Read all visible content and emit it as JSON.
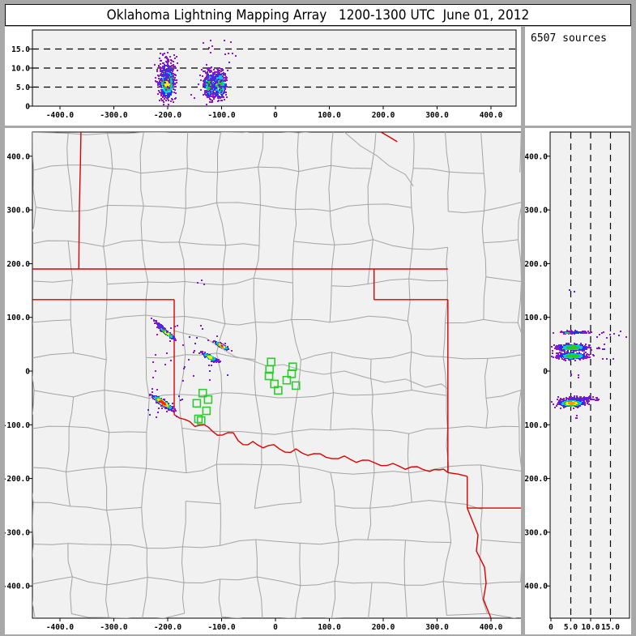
{
  "title": "Oklahoma Lightning Mapping Array   1200-1300 UTC  June 01, 2012",
  "sources_label": "6507 sources",
  "colors": {
    "frame": "#a8a8a8",
    "panel_bg": "#ffffff",
    "plot_bg": "#f1f1f1",
    "county_line": "#a3a3a3",
    "river_line": "#ababab",
    "state_border": "#dd0000",
    "station": "#2ecc2e",
    "dash_line": "#000000",
    "palettes": {
      "hot": [
        [
          0.45,
          "#ff2200"
        ],
        [
          0.72,
          "#ff9900"
        ],
        [
          0.98,
          "#ffee00"
        ],
        [
          1.28,
          "#22cc22"
        ],
        [
          1.62,
          "#00ccdd"
        ],
        [
          2.1,
          "#2233ee"
        ],
        [
          9,
          "#8818cc"
        ]
      ],
      "orange": [
        [
          0.5,
          "#ff9900"
        ],
        [
          0.82,
          "#ffee00"
        ],
        [
          1.15,
          "#22cc22"
        ],
        [
          1.5,
          "#00ccdd"
        ],
        [
          2.0,
          "#2233ee"
        ],
        [
          9,
          "#8818cc"
        ]
      ],
      "yellow": [
        [
          0.55,
          "#ffee00"
        ],
        [
          1.0,
          "#22cc22"
        ],
        [
          1.45,
          "#00ccdd"
        ],
        [
          1.95,
          "#2233ee"
        ],
        [
          9,
          "#8818cc"
        ]
      ],
      "green": [
        [
          0.8,
          "#22cc22"
        ],
        [
          1.3,
          "#00ccdd"
        ],
        [
          1.8,
          "#2233ee"
        ],
        [
          9,
          "#8818cc"
        ]
      ],
      "cyan": [
        [
          0.9,
          "#00ccdd"
        ],
        [
          1.6,
          "#2233ee"
        ],
        [
          9,
          "#8818cc"
        ]
      ],
      "blue": [
        [
          1.0,
          "#2233ee"
        ],
        [
          9,
          "#8818cc"
        ]
      ],
      "purple": [
        [
          1.1,
          "#5522dd"
        ],
        [
          9,
          "#8818cc"
        ]
      ]
    }
  },
  "chart_data": [
    {
      "type": "scatter",
      "panel": "ew_altitude",
      "description": "East-West distance (km) vs altitude (km) cross section",
      "xlim": [
        -451,
        447
      ],
      "ylim": [
        0,
        20
      ],
      "x_tick_values": [
        -400,
        -300,
        -200,
        -100,
        0,
        100,
        200,
        300,
        400
      ],
      "x_tick_labels": [
        "-400.0",
        "-300.0",
        "-200.0",
        "-100.0",
        "0",
        "100.0",
        "200.0",
        "300.0",
        "400.0"
      ],
      "y_tick_values": [
        15,
        10,
        5,
        0
      ],
      "y_tick_labels": [
        "15.0",
        "10.0",
        "5.0",
        "0"
      ],
      "dash_values": [
        5,
        10,
        15
      ],
      "clusters": [
        {
          "cx": -201,
          "cy": 6.2,
          "sx": 6.5,
          "sy": 2.0,
          "angle": 0,
          "n": 620,
          "palette": "yellow"
        },
        {
          "cx": -201,
          "cy": 8.5,
          "sx": 9.0,
          "sy": 2.6,
          "angle": 0,
          "n": 130,
          "palette": "purple"
        },
        {
          "cx": -122,
          "cy": 5.4,
          "sx": 5.0,
          "sy": 1.7,
          "angle": 0,
          "n": 260,
          "palette": "green"
        },
        {
          "cx": -103,
          "cy": 5.7,
          "sx": 6.0,
          "sy": 1.9,
          "angle": 0,
          "n": 280,
          "palette": "green"
        },
        {
          "cx": -112,
          "cy": 6.0,
          "sx": 13.0,
          "sy": 2.5,
          "angle": 0,
          "n": 150,
          "palette": "purple"
        }
      ],
      "strays": [
        {
          "x0": -140,
          "x1": -70,
          "y0": 11,
          "y1": 17.5,
          "n": 12
        },
        {
          "x0": -215,
          "x1": -195,
          "y0": 13,
          "y1": 15.5,
          "n": 3
        }
      ]
    },
    {
      "type": "scatter",
      "panel": "plan_view",
      "description": "Plan view map, E-W km vs N-S km, Oklahoma county and state borders",
      "xlim": [
        -451,
        458
      ],
      "ylim": [
        -460,
        445
      ],
      "x_tick_values": [
        -400,
        -300,
        -200,
        -100,
        0,
        100,
        200,
        300,
        400
      ],
      "x_tick_labels": [
        "-400.0",
        "-300.0",
        "-200.0",
        "-100.0",
        "0",
        "100.0",
        "200.0",
        "300.0",
        "400.0"
      ],
      "y_tick_values": [
        400,
        300,
        200,
        100,
        0,
        -100,
        -200,
        -300,
        -400
      ],
      "y_tick_labels": [
        "400.0",
        "300.0",
        "200.0",
        "100.0",
        "0",
        "-100.0",
        "-200.0",
        "-300.0",
        "-400.0"
      ],
      "clusters": [
        {
          "cx": -202,
          "cy": 71,
          "sx": 9.0,
          "sy": 1.4,
          "angle": -38,
          "n": 230,
          "palette": "yellow"
        },
        {
          "cx": -214,
          "cy": 85,
          "sx": 8.0,
          "sy": 1.2,
          "angle": -40,
          "n": 55,
          "palette": "purple"
        },
        {
          "cx": -100,
          "cy": 47,
          "sx": 7.0,
          "sy": 1.2,
          "angle": -28,
          "n": 160,
          "palette": "orange"
        },
        {
          "cx": -122,
          "cy": 26,
          "sx": 7.0,
          "sy": 1.9,
          "angle": -28,
          "n": 210,
          "palette": "yellow"
        },
        {
          "cx": -209,
          "cy": -59,
          "sx": 11.0,
          "sy": 2.3,
          "angle": -35,
          "n": 380,
          "palette": "hot"
        }
      ],
      "strays": [
        {
          "x0": -240,
          "x1": -80,
          "y0": -20,
          "y1": 85,
          "n": 38
        },
        {
          "x0": -250,
          "x1": -170,
          "y0": -95,
          "y1": -30,
          "n": 18
        },
        {
          "x0": -145,
          "x1": -132,
          "y0": 160,
          "y1": 170,
          "n": 3
        }
      ],
      "stations": [
        [
          -135,
          -41
        ],
        [
          -146,
          -60
        ],
        [
          -125,
          -53
        ],
        [
          -128,
          -74
        ],
        [
          -143,
          -89
        ],
        [
          -138,
          -92
        ],
        [
          -8,
          17
        ],
        [
          -11,
          3
        ],
        [
          32,
          8
        ],
        [
          30,
          -5
        ],
        [
          -12,
          -9
        ],
        [
          21,
          -17
        ],
        [
          -2,
          -24
        ],
        [
          38,
          -27
        ],
        [
          5,
          -36
        ]
      ],
      "state_borders": [
        [
          [
            -361,
            445
          ],
          [
            -362,
            390
          ],
          [
            -364,
            300
          ],
          [
            -365,
            190
          ]
        ],
        [
          [
            -451,
            190
          ],
          [
            320,
            190
          ]
        ],
        [
          [
            183,
            190
          ],
          [
            183,
            133
          ]
        ],
        [
          [
            183,
            133
          ],
          [
            320,
            133
          ]
        ],
        [
          [
            320,
            133
          ],
          [
            320,
            -189
          ]
        ],
        [
          [
            320,
            -189
          ],
          [
            340,
            -192
          ],
          [
            356,
            -196
          ]
        ],
        [
          [
            356,
            -196
          ],
          [
            356,
            -255
          ]
        ],
        [
          [
            356,
            -255
          ],
          [
            459,
            -255
          ]
        ],
        [
          [
            356,
            -255
          ],
          [
            376,
            -305
          ],
          [
            373,
            -335
          ],
          [
            388,
            -365
          ],
          [
            391,
            -395
          ],
          [
            386,
            -425
          ],
          [
            400,
            -460
          ]
        ],
        [
          [
            -451,
            133
          ],
          [
            -188,
            133
          ]
        ],
        [
          [
            -188,
            133
          ],
          [
            -188,
            -81
          ]
        ],
        [
          [
            196,
            445
          ],
          [
            211,
            436
          ],
          [
            226,
            427
          ]
        ]
      ],
      "red_river": [
        [
          -188,
          -81
        ],
        [
          -168,
          -90
        ],
        [
          -150,
          -103
        ],
        [
          -132,
          -100
        ],
        [
          -117,
          -112
        ],
        [
          -98,
          -119
        ],
        [
          -78,
          -115
        ],
        [
          -60,
          -137
        ],
        [
          -42,
          -131
        ],
        [
          -23,
          -143
        ],
        [
          -3,
          -137
        ],
        [
          18,
          -151
        ],
        [
          38,
          -145
        ],
        [
          60,
          -157
        ],
        [
          83,
          -154
        ],
        [
          105,
          -163
        ],
        [
          128,
          -158
        ],
        [
          150,
          -170
        ],
        [
          173,
          -166
        ],
        [
          196,
          -176
        ],
        [
          218,
          -172
        ],
        [
          241,
          -183
        ],
        [
          263,
          -178
        ],
        [
          286,
          -187
        ],
        [
          304,
          -184
        ],
        [
          320,
          -189
        ]
      ],
      "rivers": [
        [
          [
            128,
            445
          ],
          [
            158,
            419
          ],
          [
            188,
            401
          ],
          [
            211,
            382
          ],
          [
            241,
            366
          ],
          [
            256,
            344
          ]
        ],
        [
          [
            -188,
            75
          ],
          [
            -160,
            68
          ],
          [
            -130,
            62
          ],
          [
            -105,
            45
          ],
          [
            -75,
            27
          ],
          [
            -45,
            20
          ],
          [
            -15,
            9
          ],
          [
            15,
            12
          ],
          [
            53,
            0
          ],
          [
            90,
            -6
          ],
          [
            128,
            0
          ],
          [
            165,
            -11
          ],
          [
            203,
            -21
          ],
          [
            241,
            -15
          ],
          [
            278,
            -30
          ],
          [
            308,
            -24
          ],
          [
            320,
            -33
          ]
        ]
      ],
      "county_grid": {
        "cols": 13,
        "rows": 13,
        "seed": 11,
        "jitter": 6,
        "edge_prob": 0.88
      }
    },
    {
      "type": "scatter",
      "panel": "ns_altitude",
      "description": "Altitude (km) vs North-South distance (km) cross section",
      "xlim": [
        0,
        20
      ],
      "ylim": [
        -460,
        445
      ],
      "x_tick_values": [
        0,
        5,
        10,
        15
      ],
      "x_tick_labels": [
        "0",
        "5.0",
        "10.0",
        "15.0"
      ],
      "y_tick_values": [
        400,
        300,
        200,
        100,
        0,
        -100,
        -200,
        -300,
        -400
      ],
      "y_tick_labels": [
        "400.0",
        "300.0",
        "200.0",
        "100.0",
        "0",
        "-100.0",
        "-200.0",
        "-300.0",
        "-400.0"
      ],
      "dash_values": [
        5,
        10,
        15
      ],
      "clusters": [
        {
          "cx": 6.0,
          "cy": 72,
          "sx": 2.0,
          "sy": 1.3,
          "angle": 0,
          "n": 100,
          "palette": "blue"
        },
        {
          "cx": 4.2,
          "cy": 71,
          "sx": 0.5,
          "sy": 0.5,
          "angle": 0,
          "n": 12,
          "palette": "green"
        },
        {
          "cx": 5.5,
          "cy": 44,
          "sx": 1.9,
          "sy": 3.0,
          "angle": 0,
          "n": 420,
          "palette": "green"
        },
        {
          "cx": 5.5,
          "cy": 28,
          "sx": 1.8,
          "sy": 2.9,
          "angle": 0,
          "n": 380,
          "palette": "green"
        },
        {
          "cx": 7.5,
          "cy": -52,
          "sx": 2.2,
          "sy": 2.4,
          "angle": 0,
          "n": 130,
          "palette": "purple"
        },
        {
          "cx": 5.2,
          "cy": -60,
          "sx": 1.6,
          "sy": 3.0,
          "angle": 0,
          "n": 380,
          "palette": "orange"
        }
      ],
      "strays": [
        {
          "x0": 10,
          "x1": 18,
          "y0": 60,
          "y1": 78,
          "n": 9
        },
        {
          "x0": 11,
          "x1": 14,
          "y0": 35,
          "y1": 50,
          "n": 6
        },
        {
          "x0": 12,
          "x1": 16,
          "y0": 22,
          "y1": 32,
          "n": 4
        },
        {
          "x0": 4,
          "x1": 7,
          "y0": -12,
          "y1": -5,
          "n": 4
        },
        {
          "x0": 4,
          "x1": 6,
          "y0": 148,
          "y1": 153,
          "n": 2
        },
        {
          "x0": 5,
          "x1": 9,
          "y0": -90,
          "y1": -80,
          "n": 3
        },
        {
          "x0": 18.5,
          "x1": 19.5,
          "y0": 60,
          "y1": 66,
          "n": 1
        }
      ]
    }
  ]
}
